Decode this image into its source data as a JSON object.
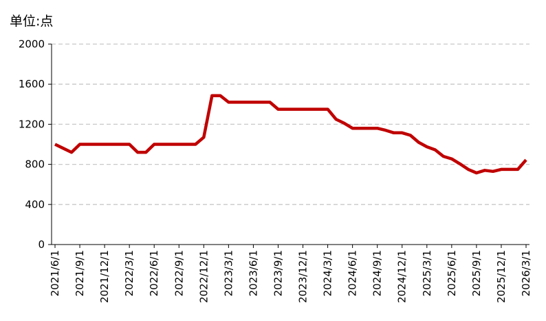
{
  "chart_data": {
    "type": "line",
    "title": "单位:点",
    "categories": [
      "2021/6/1",
      null,
      null,
      "2021/9/1",
      null,
      null,
      "2021/12/1",
      null,
      null,
      "2022/3/1",
      null,
      null,
      "2022/6/1",
      null,
      null,
      "2022/9/1",
      null,
      null,
      "2022/12/1",
      null,
      null,
      "2023/3/1",
      null,
      null,
      "2023/6/1",
      null,
      null,
      "2023/9/1",
      null,
      null,
      "2023/12/1",
      null,
      null,
      "2024/3/1",
      null,
      null,
      "2024/6/1",
      null,
      null,
      "2024/9/1",
      null,
      null,
      "2024/12/1",
      null,
      null,
      "2025/3/1",
      null,
      null,
      "2025/6/1",
      null,
      null,
      "2025/9/1",
      null,
      null,
      "2025/12/1",
      null,
      null,
      "2026/3/1"
    ],
    "values": [
      1000,
      960,
      920,
      1000,
      1000,
      1000,
      1000,
      1000,
      1000,
      1000,
      920,
      920,
      1000,
      1000,
      1000,
      1000,
      1000,
      1000,
      1070,
      1485,
      1485,
      1420,
      1420,
      1420,
      1420,
      1420,
      1420,
      1350,
      1350,
      1350,
      1350,
      1350,
      1350,
      1350,
      1250,
      1210,
      1160,
      1160,
      1160,
      1160,
      1140,
      1115,
      1115,
      1090,
      1020,
      975,
      945,
      880,
      855,
      805,
      750,
      715,
      740,
      730,
      750,
      750,
      750,
      845
    ],
    "color": "#c00000",
    "ylim": [
      0,
      2000
    ],
    "yticks": [
      0,
      400,
      800,
      1200,
      1600,
      2000
    ],
    "grid": true
  }
}
